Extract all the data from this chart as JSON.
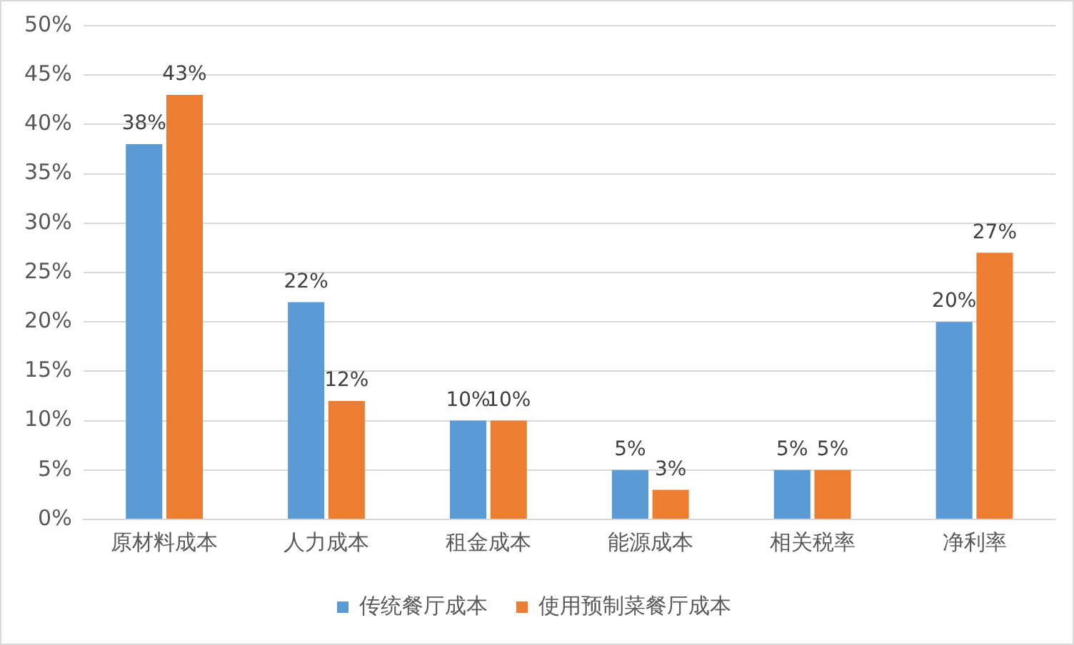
{
  "chart_data": {
    "type": "bar",
    "categories": [
      "原材料成本",
      "人力成本",
      "租金成本",
      "能源成本",
      "相关税率",
      "净利率"
    ],
    "series": [
      {
        "name": "传统餐厅成本",
        "color": "#5b9bd5",
        "values": [
          38,
          22,
          10,
          5,
          5,
          20
        ],
        "value_labels": [
          "38%",
          "22%",
          "10%",
          "5%",
          "5%",
          "20%"
        ]
      },
      {
        "name": "使用预制菜餐厅成本",
        "color": "#ed7d31",
        "values": [
          43,
          12,
          10,
          3,
          5,
          27
        ],
        "value_labels": [
          "43%",
          "12%",
          "10%",
          "3%",
          "5%",
          "27%"
        ]
      }
    ],
    "ylim": [
      0,
      50
    ],
    "yticks": [
      {
        "value": 0,
        "label": "0%"
      },
      {
        "value": 5,
        "label": "5%"
      },
      {
        "value": 10,
        "label": "10%"
      },
      {
        "value": 15,
        "label": "15%"
      },
      {
        "value": 20,
        "label": "20%"
      },
      {
        "value": 25,
        "label": "25%"
      },
      {
        "value": 30,
        "label": "30%"
      },
      {
        "value": 35,
        "label": "35%"
      },
      {
        "value": 40,
        "label": "40%"
      },
      {
        "value": 45,
        "label": "45%"
      },
      {
        "value": 50,
        "label": "50%"
      }
    ],
    "grid": "y",
    "legend": "bottom"
  }
}
